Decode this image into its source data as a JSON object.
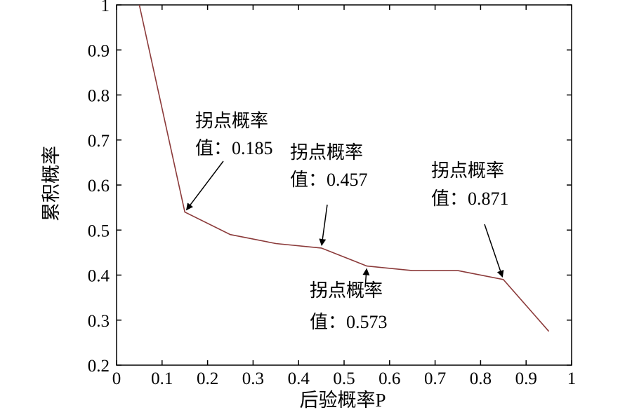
{
  "chart_data": {
    "type": "line",
    "xlabel": "后验概率P",
    "ylabel": "累积概率",
    "xlim": [
      0,
      1
    ],
    "ylim": [
      0.2,
      1
    ],
    "grid": false,
    "x_ticks": [
      "0",
      "0.1",
      "0.2",
      "0.3",
      "0.4",
      "0.5",
      "0.6",
      "0.7",
      "0.8",
      "0.9",
      "1"
    ],
    "y_ticks": [
      "0.2",
      "0.3",
      "0.4",
      "0.5",
      "0.6",
      "0.7",
      "0.8",
      "0.9",
      "1"
    ],
    "series": [
      {
        "color": "#8b3a3a",
        "x": [
          0.05,
          0.15,
          0.25,
          0.35,
          0.45,
          0.55,
          0.65,
          0.75,
          0.85,
          0.95
        ],
        "y": [
          1.0,
          0.54,
          0.49,
          0.47,
          0.46,
          0.42,
          0.41,
          0.41,
          0.39,
          0.275
        ]
      }
    ],
    "annotations": [
      {
        "title": "拐点概率",
        "value_text": "值：0.185",
        "target": [
          0.15,
          0.54
        ]
      },
      {
        "title": "拐点概率",
        "value_text": "值：0.457",
        "target": [
          0.45,
          0.46
        ]
      },
      {
        "title": "拐点概率",
        "value_text": "值：0.573",
        "target": [
          0.55,
          0.42
        ]
      },
      {
        "title": "拐点概率",
        "value_text": "值：0.871",
        "target": [
          0.85,
          0.39
        ]
      }
    ]
  }
}
